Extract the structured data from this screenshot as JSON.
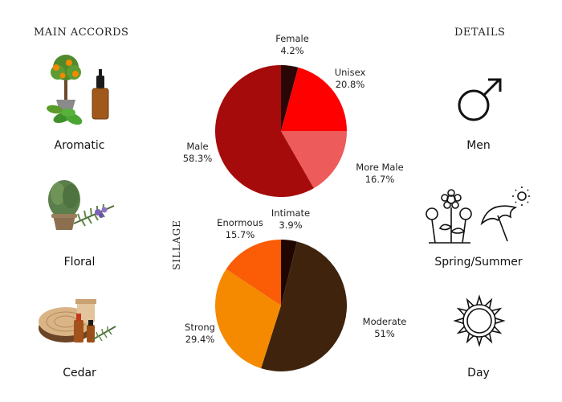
{
  "headings": {
    "main_accords": "MAIN ACCORDS",
    "details": "DETAILS",
    "sillage": "SILLAGE"
  },
  "accords": [
    {
      "label": "Aromatic",
      "icon": "aromatic-herbs-oil-image"
    },
    {
      "label": "Floral",
      "icon": "rosemary-plant-image"
    },
    {
      "label": "Cedar",
      "icon": "cedar-wood-oil-image"
    }
  ],
  "details": [
    {
      "label": "Men",
      "icon": "male-symbol-icon"
    },
    {
      "label": "Spring/Summer",
      "icon": "flowers-umbrella-sun-icon"
    },
    {
      "label": "Day",
      "icon": "sun-icon"
    }
  ],
  "chart_data": [
    {
      "type": "pie",
      "title": "",
      "slices": [
        {
          "label": "Female",
          "value": 4.2,
          "display": "4.2%",
          "color": "#2a0606"
        },
        {
          "label": "Unisex",
          "value": 20.8,
          "display": "20.8%",
          "color": "#ff0000"
        },
        {
          "label": "More Male",
          "value": 16.7,
          "display": "16.7%",
          "color": "#ee5b5b"
        },
        {
          "label": "Male",
          "value": 58.3,
          "display": "58.3%",
          "color": "#a50b0b"
        }
      ]
    },
    {
      "type": "pie",
      "title": "SILLAGE",
      "slices": [
        {
          "label": "Intimate",
          "value": 3.9,
          "display": "3.9%",
          "color": "#1f0600"
        },
        {
          "label": "Moderate",
          "value": 51,
          "display": "51%",
          "color": "#3f230c"
        },
        {
          "label": "Strong",
          "value": 29.4,
          "display": "29.4%",
          "color": "#f58a00"
        },
        {
          "label": "Enormous",
          "value": 15.7,
          "display": "15.7%",
          "color": "#fb5c06"
        }
      ]
    }
  ]
}
